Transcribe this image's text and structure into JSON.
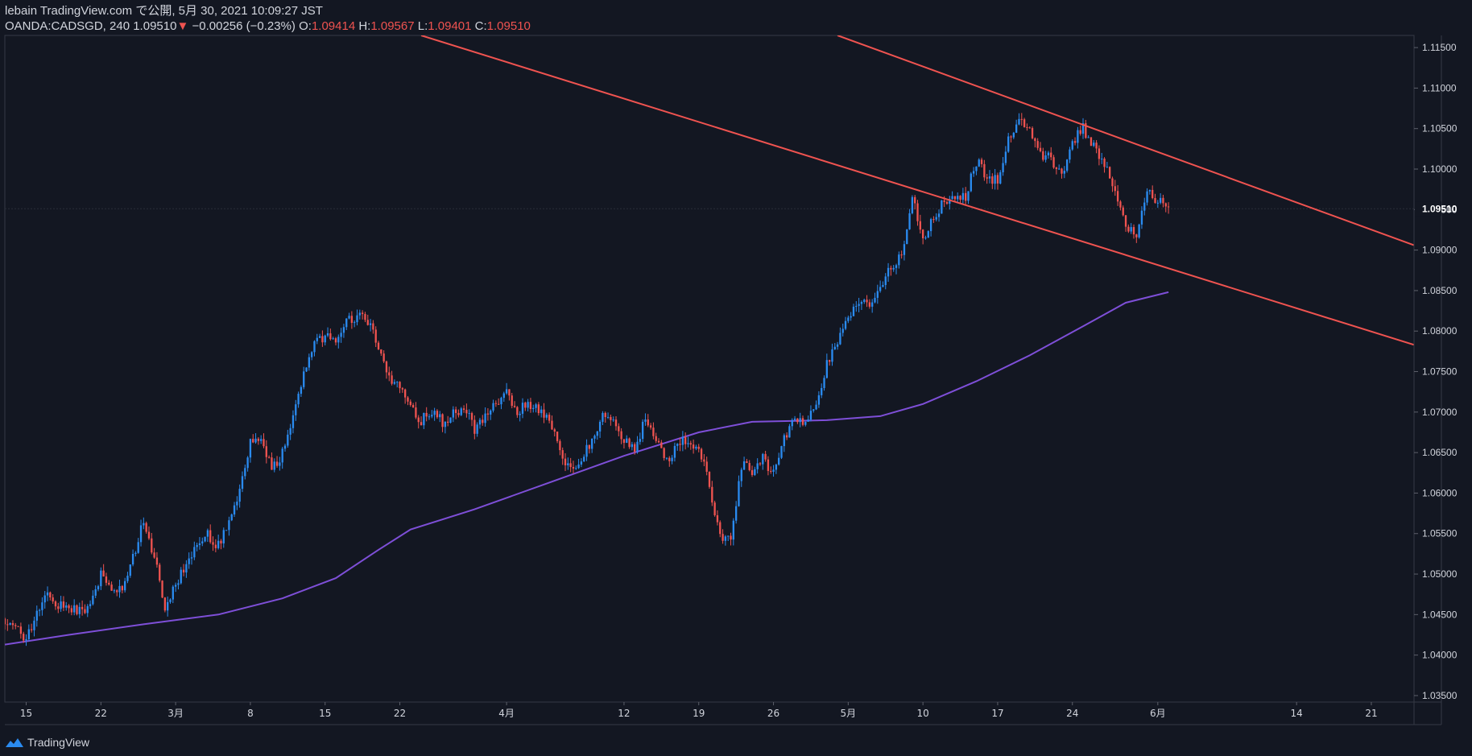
{
  "header": {
    "publish_line": "lebain TradingView.com で公開, 5月 30, 2021 10:09:27 JST",
    "symbol": "OANDA:CADSGD, 240",
    "last": "1.09510",
    "change": "−0.00256 (−0.23%)",
    "open_label": "O:",
    "open_value": "1.09414",
    "high_label": "H:",
    "high_value": "1.09567",
    "low_label": "L:",
    "low_value": "1.09401",
    "close_label": "C:",
    "close_value": "1.09510"
  },
  "footer": {
    "brand": "TradingView",
    "icon": "tradingview-logo-icon"
  },
  "colors": {
    "background": "#131722",
    "up": "#2a8bf0",
    "down": "#ef5350",
    "ma": "#7e4fd8",
    "trendline": "#ef5350",
    "axis_text": "#d1d4dc",
    "border": "#363a45"
  },
  "chart_data": {
    "type": "candlestick",
    "y_axis": {
      "min": 1.0342,
      "max": 1.1165,
      "ticks": [
        1.035,
        1.04,
        1.045,
        1.05,
        1.055,
        1.06,
        1.065,
        1.07,
        1.075,
        1.08,
        1.085,
        1.09,
        1.095,
        1.1,
        1.105,
        1.11,
        1.115
      ],
      "tick_labels": [
        "1.03500",
        "1.04000",
        "1.04500",
        "1.05000",
        "1.05500",
        "1.06000",
        "1.06500",
        "1.07000",
        "1.07500",
        "1.08000",
        "1.08500",
        "1.09000",
        "1.09500",
        "1.10000",
        "1.10500",
        "1.11000",
        "1.11500"
      ],
      "last_price": 1.0951,
      "last_price_label": "1.09510"
    },
    "x_axis": {
      "start": "2021-02-13",
      "end": "2021-06-25",
      "ticks": [
        {
          "date": "2021-02-15",
          "label": "15"
        },
        {
          "date": "2021-02-22",
          "label": "22"
        },
        {
          "date": "2021-03-01",
          "label": "3月"
        },
        {
          "date": "2021-03-08",
          "label": "8"
        },
        {
          "date": "2021-03-15",
          "label": "15"
        },
        {
          "date": "2021-03-22",
          "label": "22"
        },
        {
          "date": "2021-04-01",
          "label": "4月"
        },
        {
          "date": "2021-04-12",
          "label": "12"
        },
        {
          "date": "2021-04-19",
          "label": "19"
        },
        {
          "date": "2021-04-26",
          "label": "26"
        },
        {
          "date": "2021-05-03",
          "label": "5月"
        },
        {
          "date": "2021-05-10",
          "label": "10"
        },
        {
          "date": "2021-05-17",
          "label": "17"
        },
        {
          "date": "2021-05-24",
          "label": "24"
        },
        {
          "date": "2021-06-01",
          "label": "6月"
        },
        {
          "date": "2021-06-14",
          "label": "14"
        },
        {
          "date": "2021-06-21",
          "label": "21"
        }
      ]
    },
    "price_path": [
      [
        "2021-02-13",
        1.0445
      ],
      [
        "2021-02-14",
        1.0436
      ],
      [
        "2021-02-15",
        1.0418
      ],
      [
        "2021-02-16",
        1.0452
      ],
      [
        "2021-02-17",
        1.0478
      ],
      [
        "2021-02-18",
        1.0462
      ],
      [
        "2021-02-19",
        1.0458
      ],
      [
        "2021-02-20",
        1.0455
      ],
      [
        "2021-02-21",
        1.046
      ],
      [
        "2021-02-22",
        1.05
      ],
      [
        "2021-02-23",
        1.0475
      ],
      [
        "2021-02-24",
        1.0482
      ],
      [
        "2021-02-25",
        1.052
      ],
      [
        "2021-02-26",
        1.0568
      ],
      [
        "2021-02-27",
        1.052
      ],
      [
        "2021-02-28",
        1.046
      ],
      [
        "2021-03-01",
        1.0488
      ],
      [
        "2021-03-02",
        1.051
      ],
      [
        "2021-03-03",
        1.054
      ],
      [
        "2021-03-04",
        1.055
      ],
      [
        "2021-03-05",
        1.0535
      ],
      [
        "2021-03-06",
        1.056
      ],
      [
        "2021-03-07",
        1.06
      ],
      [
        "2021-03-08",
        1.066
      ],
      [
        "2021-03-09",
        1.0668
      ],
      [
        "2021-03-10",
        1.0632
      ],
      [
        "2021-03-11",
        1.0648
      ],
      [
        "2021-03-12",
        1.07
      ],
      [
        "2021-03-13",
        1.075
      ],
      [
        "2021-03-14",
        1.0782
      ],
      [
        "2021-03-15",
        1.0795
      ],
      [
        "2021-03-16",
        1.0788
      ],
      [
        "2021-03-17",
        1.0815
      ],
      [
        "2021-03-18",
        1.0818
      ],
      [
        "2021-03-19",
        1.0812
      ],
      [
        "2021-03-20",
        1.0778
      ],
      [
        "2021-03-21",
        1.0745
      ],
      [
        "2021-03-22",
        1.0732
      ],
      [
        "2021-03-23",
        1.0705
      ],
      [
        "2021-03-24",
        1.069
      ],
      [
        "2021-03-25",
        1.0702
      ],
      [
        "2021-03-26",
        1.0688
      ],
      [
        "2021-03-27",
        1.0698
      ],
      [
        "2021-03-28",
        1.0705
      ],
      [
        "2021-03-29",
        1.068
      ],
      [
        "2021-03-30",
        1.0696
      ],
      [
        "2021-03-31",
        1.071
      ],
      [
        "2021-04-01",
        1.0722
      ],
      [
        "2021-04-02",
        1.0702
      ],
      [
        "2021-04-03",
        1.0712
      ],
      [
        "2021-04-04",
        1.07
      ],
      [
        "2021-04-05",
        1.069
      ],
      [
        "2021-04-06",
        1.065
      ],
      [
        "2021-04-07",
        1.063
      ],
      [
        "2021-04-08",
        1.064
      ],
      [
        "2021-04-09",
        1.0665
      ],
      [
        "2021-04-10",
        1.07
      ],
      [
        "2021-04-11",
        1.069
      ],
      [
        "2021-04-12",
        1.0665
      ],
      [
        "2021-04-13",
        1.065
      ],
      [
        "2021-04-14",
        1.0692
      ],
      [
        "2021-04-15",
        1.0665
      ],
      [
        "2021-04-16",
        1.064
      ],
      [
        "2021-04-17",
        1.066
      ],
      [
        "2021-04-18",
        1.0668
      ],
      [
        "2021-04-19",
        1.0655
      ],
      [
        "2021-04-20",
        1.061
      ],
      [
        "2021-04-21",
        1.0545
      ],
      [
        "2021-04-22",
        1.054
      ],
      [
        "2021-04-23",
        1.0635
      ],
      [
        "2021-04-24",
        1.0628
      ],
      [
        "2021-04-25",
        1.0645
      ],
      [
        "2021-04-26",
        1.0622
      ],
      [
        "2021-04-27",
        1.0665
      ],
      [
        "2021-04-28",
        1.069
      ],
      [
        "2021-04-29",
        1.0688
      ],
      [
        "2021-04-30",
        1.071
      ],
      [
        "2021-05-01",
        1.076
      ],
      [
        "2021-05-02",
        1.0788
      ],
      [
        "2021-05-03",
        1.0818
      ],
      [
        "2021-05-04",
        1.0838
      ],
      [
        "2021-05-05",
        1.083
      ],
      [
        "2021-05-06",
        1.085
      ],
      [
        "2021-05-07",
        1.0878
      ],
      [
        "2021-05-08",
        1.0895
      ],
      [
        "2021-05-09",
        1.097
      ],
      [
        "2021-05-10",
        1.091
      ],
      [
        "2021-05-11",
        1.094
      ],
      [
        "2021-05-12",
        1.096
      ],
      [
        "2021-05-13",
        1.0968
      ],
      [
        "2021-05-14",
        1.0965
      ],
      [
        "2021-05-15",
        1.101
      ],
      [
        "2021-05-16",
        1.099
      ],
      [
        "2021-05-17",
        1.0985
      ],
      [
        "2021-05-18",
        1.1035
      ],
      [
        "2021-05-19",
        1.1068
      ],
      [
        "2021-05-20",
        1.1045
      ],
      [
        "2021-05-21",
        1.1018
      ],
      [
        "2021-05-22",
        1.1012
      ],
      [
        "2021-05-23",
        1.0992
      ],
      [
        "2021-05-24",
        1.1035
      ],
      [
        "2021-05-25",
        1.105
      ],
      [
        "2021-05-26",
        1.103
      ],
      [
        "2021-05-27",
        1.1005
      ],
      [
        "2021-05-28",
        1.0975
      ],
      [
        "2021-05-29",
        1.0928
      ],
      [
        "2021-05-30",
        1.0922
      ],
      [
        "2021-05-31",
        1.0975
      ],
      [
        "2021-06-01",
        1.0962
      ],
      [
        "2021-06-02",
        1.0951
      ]
    ],
    "moving_average": [
      [
        "2021-02-13",
        1.0413
      ],
      [
        "2021-02-19",
        1.0425
      ],
      [
        "2021-02-26",
        1.0438
      ],
      [
        "2021-03-05",
        1.045
      ],
      [
        "2021-03-11",
        1.047
      ],
      [
        "2021-03-16",
        1.0495
      ],
      [
        "2021-03-20",
        1.053
      ],
      [
        "2021-03-23",
        1.0555
      ],
      [
        "2021-03-29",
        1.058
      ],
      [
        "2021-04-05",
        1.0613
      ],
      [
        "2021-04-12",
        1.0646
      ],
      [
        "2021-04-19",
        1.0675
      ],
      [
        "2021-04-24",
        1.0688
      ],
      [
        "2021-05-01",
        1.069
      ],
      [
        "2021-05-06",
        1.0695
      ],
      [
        "2021-05-10",
        1.071
      ],
      [
        "2021-05-15",
        1.0738
      ],
      [
        "2021-05-20",
        1.077
      ],
      [
        "2021-05-25",
        1.0806
      ],
      [
        "2021-05-29",
        1.0835
      ],
      [
        "2021-06-02",
        1.0848
      ]
    ],
    "trend_lines": [
      {
        "name": "upper-trendline",
        "points": [
          [
            "2021-05-02",
            1.1165
          ],
          [
            "2021-06-25",
            1.0906
          ]
        ]
      },
      {
        "name": "lower-trendline",
        "points": [
          [
            "2021-03-24",
            1.1165
          ],
          [
            "2021-06-25",
            1.0783
          ]
        ]
      }
    ]
  }
}
